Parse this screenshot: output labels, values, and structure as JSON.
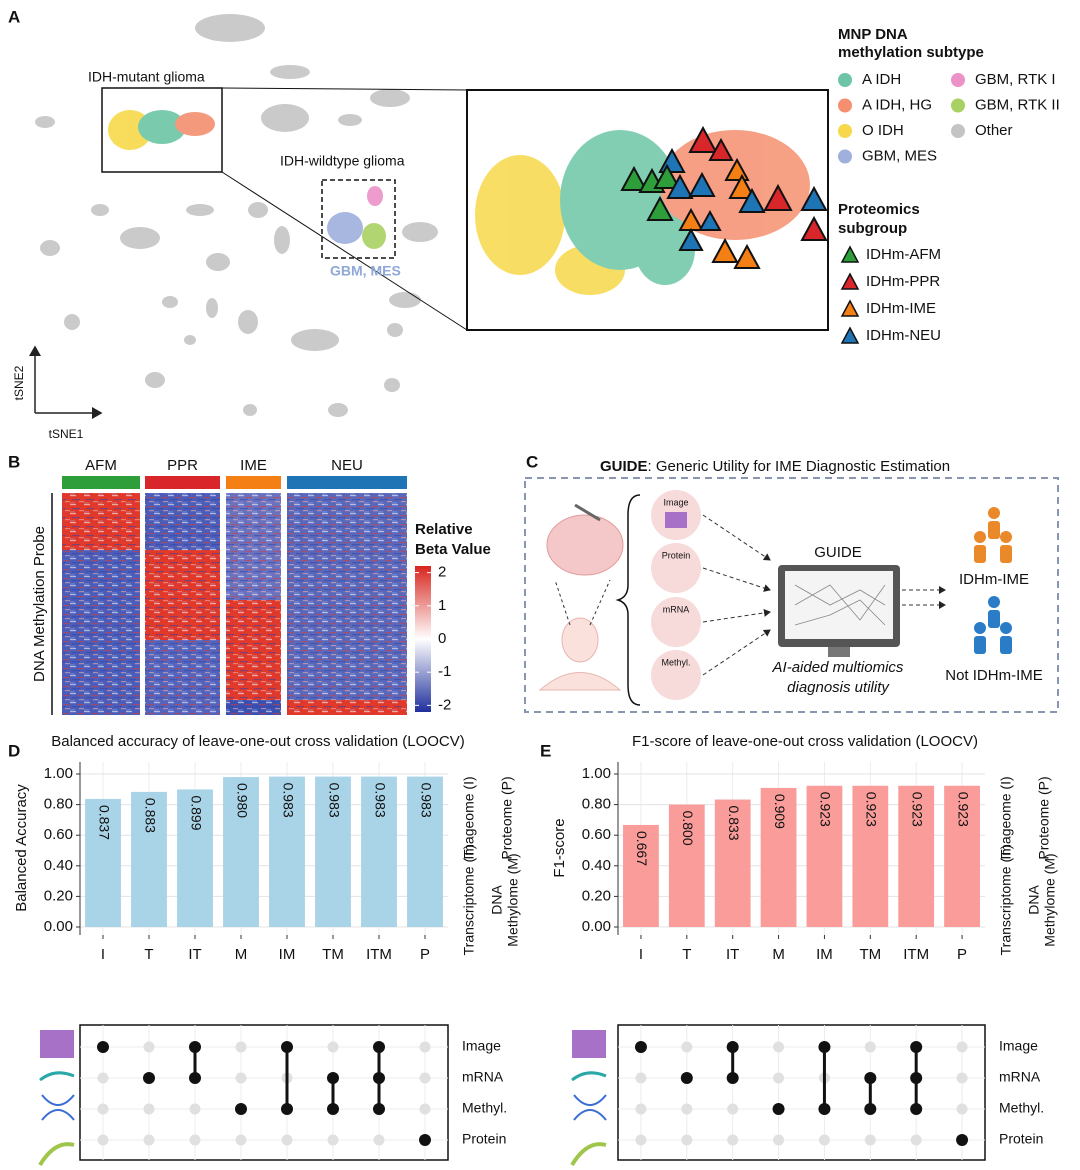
{
  "panel_a": {
    "panel": "A",
    "mutant_label": "IDH-mutant glioma",
    "wildtype_label": "IDH-wildtype glioma",
    "mes_label": "GBM, MES",
    "xlabel": "tSNE1",
    "ylabel": "tSNE2",
    "subtype_title": [
      "MNP DNA",
      "methylation subtype"
    ],
    "subtypes": [
      {
        "name": "A IDH",
        "color": "#6cc6a6"
      },
      {
        "name": "A IDH, HG",
        "color": "#f58f6f"
      },
      {
        "name": "O IDH",
        "color": "#f7d84a"
      },
      {
        "name": "GBM, MES",
        "color": "#9fb0dc"
      },
      {
        "name": "GBM, RTK I",
        "color": "#ec92c8"
      },
      {
        "name": "GBM, RTK II",
        "color": "#a9d162"
      },
      {
        "name": "Other",
        "color": "#c4c4c4"
      }
    ],
    "subgroup_title": [
      "Proteomics",
      "subgroup"
    ],
    "subgroups": [
      {
        "name": "IDHm-AFM",
        "color": "#2e9e3a"
      },
      {
        "name": "IDHm-PPR",
        "color": "#d8262b"
      },
      {
        "name": "IDHm-IME",
        "color": "#f47f14"
      },
      {
        "name": "IDHm-NEU",
        "color": "#1f74b6"
      }
    ]
  },
  "panel_b": {
    "panel": "B",
    "groups": [
      {
        "name": "AFM",
        "color": "#2e9e3a"
      },
      {
        "name": "PPR",
        "color": "#d8262b"
      },
      {
        "name": "IME",
        "color": "#f47f14"
      },
      {
        "name": "NEU",
        "color": "#1f74b6"
      }
    ],
    "ylabel": "DNA Methylation Probe",
    "colorbar_title": [
      "Relative",
      "Beta Value"
    ],
    "colorbar_lim": [
      -2.2,
      2.2
    ],
    "colorbar_ticks": [
      2,
      1,
      0,
      -1,
      -2
    ]
  },
  "panel_c": {
    "panel": "C",
    "title_bold": "GUIDE",
    "title_rest": ": Generic Utility for IME Diagnostic Estimation",
    "inputs": [
      "Image",
      "Protein",
      "mRNA",
      "Methyl."
    ],
    "model": "GUIDE",
    "caption": [
      "AI-aided multiomics",
      "diagnosis utility"
    ],
    "outputs": [
      "IDHm-IME",
      "Not IDHm-IME"
    ]
  },
  "chart_data": [
    {
      "type": "bar",
      "panel": "D",
      "title": "Balanced accuracy of leave-one-out cross validation (LOOCV)",
      "ylabel": "Balanced Accuracy",
      "categories": [
        "I",
        "T",
        "IT",
        "M",
        "IM",
        "TM",
        "ITM",
        "P"
      ],
      "values": [
        0.837,
        0.883,
        0.899,
        0.98,
        0.983,
        0.983,
        0.983,
        0.983
      ],
      "value_labels": [
        "0.837",
        "0.883",
        "0.899",
        "0.980",
        "0.983",
        "0.983",
        "0.983",
        "0.983"
      ],
      "color": "#a9d3e6",
      "ylim": [
        0,
        1
      ],
      "yticks": [
        {
          "value": 0,
          "label": "0.00"
        },
        {
          "value": 0.2,
          "label": "0.20"
        },
        {
          "value": 0.4,
          "label": "0.40"
        },
        {
          "value": 0.6,
          "label": "0.60"
        },
        {
          "value": 0.8,
          "label": "0.80"
        },
        {
          "value": 1,
          "label": "1.00"
        }
      ],
      "grid": true,
      "side_labels": [
        "Imageome (I)",
        "Proteome (P)",
        "Transcriptome (T)",
        "DNA",
        "Methylome (M)"
      ],
      "matrix_rows": [
        "Image",
        "mRNA",
        "Methyl.",
        "Protein"
      ],
      "sets": [
        [
          0
        ],
        [
          1
        ],
        [
          0,
          1
        ],
        [
          2
        ],
        [
          0,
          2
        ],
        [
          1,
          2
        ],
        [
          0,
          1,
          2
        ],
        [
          3
        ]
      ]
    },
    {
      "type": "bar",
      "panel": "E",
      "title": "F1-score of leave-one-out cross validation (LOOCV)",
      "ylabel": "F1-score",
      "categories": [
        "I",
        "T",
        "IT",
        "M",
        "IM",
        "TM",
        "ITM",
        "P"
      ],
      "values": [
        0.667,
        0.8,
        0.833,
        0.909,
        0.923,
        0.923,
        0.923,
        0.923
      ],
      "value_labels": [
        "0.667",
        "0.800",
        "0.833",
        "0.909",
        "0.923",
        "0.923",
        "0.923",
        "0.923"
      ],
      "color": "#f99c9a",
      "ylim": [
        0,
        1
      ],
      "yticks": [
        {
          "value": 0,
          "label": "0.00"
        },
        {
          "value": 0.2,
          "label": "0.20"
        },
        {
          "value": 0.4,
          "label": "0.40"
        },
        {
          "value": 0.6,
          "label": "0.60"
        },
        {
          "value": 0.8,
          "label": "0.80"
        },
        {
          "value": 1,
          "label": "1.00"
        }
      ],
      "grid": true,
      "side_labels": [
        "Imageome (I)",
        "Proteome (P)",
        "Transcriptome (T)",
        "DNA",
        "Methylome (M)"
      ],
      "matrix_rows": [
        "Image",
        "mRNA",
        "Methyl.",
        "Protein"
      ],
      "sets": [
        [
          0
        ],
        [
          1
        ],
        [
          0,
          1
        ],
        [
          2
        ],
        [
          0,
          2
        ],
        [
          1,
          2
        ],
        [
          0,
          1,
          2
        ],
        [
          3
        ]
      ]
    }
  ]
}
